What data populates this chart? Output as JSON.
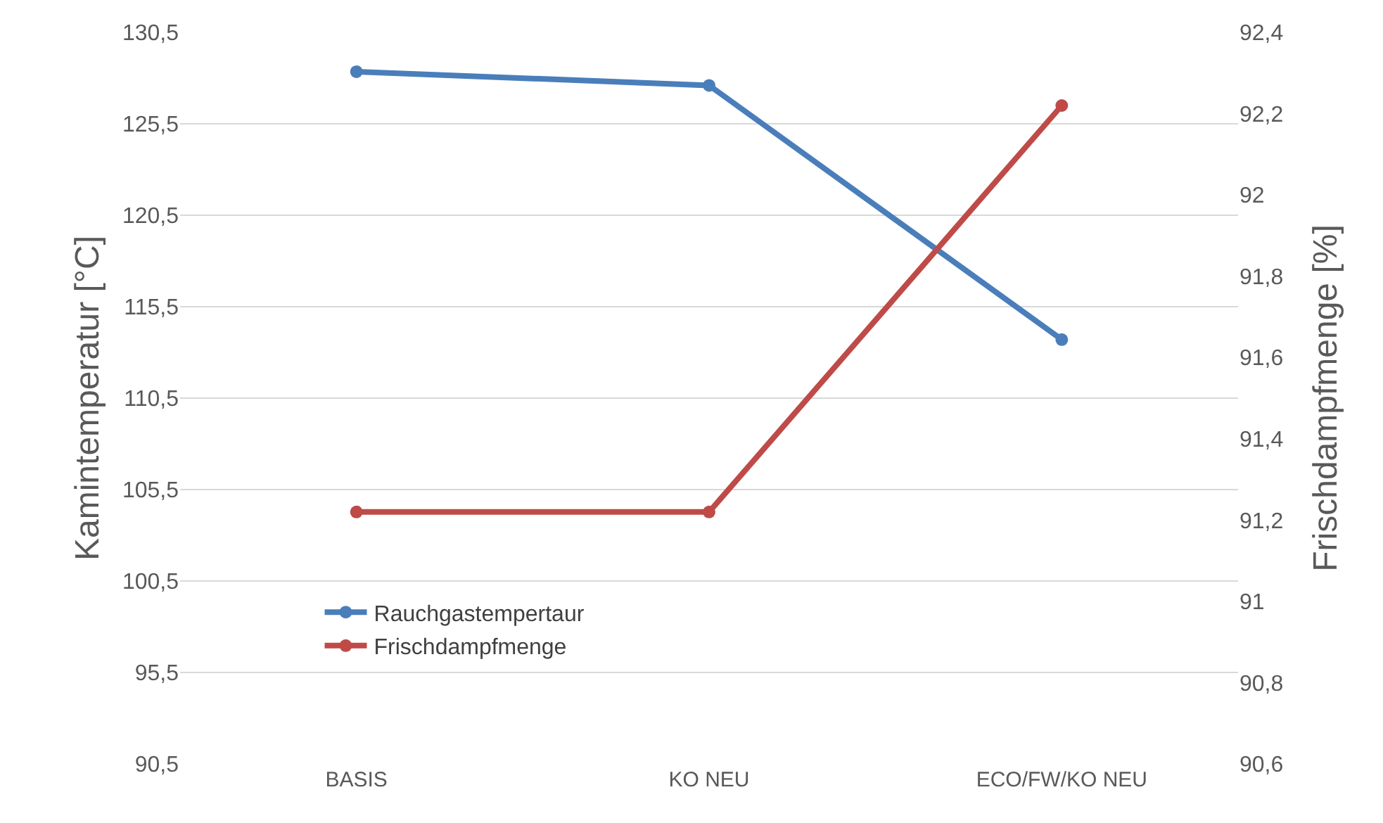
{
  "chart_data": {
    "type": "line",
    "categories": [
      "BASIS",
      "KO NEU",
      "ECO/FW/KO NEU"
    ],
    "ylabel": "Kamintemperatur [°C]",
    "y2label": "Frischdampfmenge [%]",
    "series": [
      {
        "name": "Rauchgastempertaur",
        "color": "#4a7ebb",
        "values": [
          128.35,
          127.6,
          113.7
        ]
      },
      {
        "name": "Frischdampfmenge",
        "color": "#be4b48",
        "axis": "y2",
        "values": [
          91.22,
          91.22,
          92.22
        ]
      }
    ],
    "ylim": [
      90.5,
      130.5
    ],
    "yticks": [
      {
        "value": 90.5,
        "label": "90,5"
      },
      {
        "value": 95.5,
        "label": "95,5"
      },
      {
        "value": 100.5,
        "label": "100,5"
      },
      {
        "value": 105.5,
        "label": "105,5"
      },
      {
        "value": 110.5,
        "label": "110,5"
      },
      {
        "value": 115.5,
        "label": "115,5"
      },
      {
        "value": 120.5,
        "label": "120,5"
      },
      {
        "value": 125.5,
        "label": "125,5"
      },
      {
        "value": 130.5,
        "label": "130,5"
      }
    ],
    "y2lim": [
      90.6,
      92.4
    ],
    "y2ticks": [
      {
        "value": 90.6,
        "label": "90,6"
      },
      {
        "value": 90.8,
        "label": "90,8"
      },
      91,
      {
        "value": 91.2,
        "label": "91,2"
      },
      {
        "value": 91.4,
        "label": "91,4"
      },
      {
        "value": 91.6,
        "label": "91,6"
      },
      {
        "value": 91.8,
        "label": "91,8"
      },
      92,
      {
        "value": 92.2,
        "label": "92,2"
      },
      {
        "value": 92.4,
        "label": "92,4"
      }
    ],
    "grid": "y",
    "legend": "bottom left",
    "marker": "circle",
    "line_style": "solid"
  }
}
